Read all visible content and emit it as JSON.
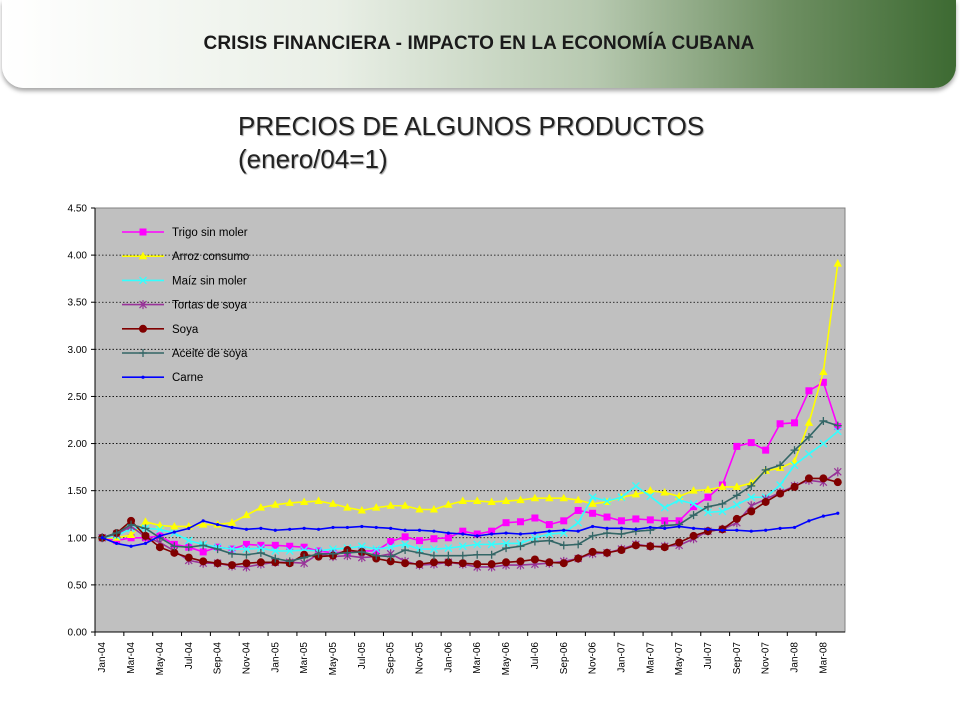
{
  "banner": {
    "title": "CRISIS FINANCIERA  - IMPACTO EN LA ECONOMÍA CUBANA"
  },
  "heading": {
    "line1": "PRECIOS DE ALGUNOS PRODUCTOS",
    "line2": "(enero/04=1)"
  },
  "colors": {
    "plot_background": "#c0c0c0",
    "banner_dark": "#3d6a32"
  },
  "chart_data": {
    "type": "line",
    "title": "",
    "xlabel": "",
    "ylabel": "",
    "ylim": [
      0,
      4.5
    ],
    "yticks": [
      "0.00",
      "0.50",
      "1.00",
      "1.50",
      "2.00",
      "2.50",
      "3.00",
      "3.50",
      "4.00",
      "4.50"
    ],
    "grid": "horizontal dotted",
    "legend_position": "top-left",
    "x_tick_labels": [
      "Jan-04",
      "Mar-04",
      "May-04",
      "Jul-04",
      "Sep-04",
      "Nov-04",
      "Jan-05",
      "Mar-05",
      "May-05",
      "Jul-05",
      "Sep-05",
      "Nov-05",
      "Jan-06",
      "Mar-06",
      "May-06",
      "Jul-06",
      "Sep-06",
      "Nov-06",
      "Jan-07",
      "Mar-07",
      "May-07",
      "Jul-07",
      "Sep-07",
      "Nov-07",
      "Jan-08",
      "Mar-08"
    ],
    "x": [
      "Jan-04",
      "Feb-04",
      "Mar-04",
      "Apr-04",
      "May-04",
      "Jun-04",
      "Jul-04",
      "Aug-04",
      "Sep-04",
      "Oct-04",
      "Nov-04",
      "Dec-04",
      "Jan-05",
      "Feb-05",
      "Mar-05",
      "Apr-05",
      "May-05",
      "Jun-05",
      "Jul-05",
      "Aug-05",
      "Sep-05",
      "Oct-05",
      "Nov-05",
      "Dec-05",
      "Jan-06",
      "Feb-06",
      "Mar-06",
      "Apr-06",
      "May-06",
      "Jun-06",
      "Jul-06",
      "Aug-06",
      "Sep-06",
      "Oct-06",
      "Nov-06",
      "Dec-06",
      "Jan-07",
      "Feb-07",
      "Mar-07",
      "Apr-07",
      "May-07",
      "Jun-07",
      "Jul-07",
      "Aug-07",
      "Sep-07",
      "Oct-07",
      "Nov-07",
      "Dec-07",
      "Jan-08",
      "Feb-08",
      "Mar-08",
      "Apr-08"
    ],
    "series": [
      {
        "name": "Trigo sin moler",
        "color": "#ff00ff",
        "marker": "square",
        "values": [
          1.0,
          0.97,
          1.0,
          1.0,
          1.02,
          0.93,
          0.9,
          0.85,
          0.9,
          0.88,
          0.93,
          0.92,
          0.92,
          0.91,
          0.9,
          0.86,
          0.84,
          0.85,
          0.86,
          0.86,
          0.96,
          1.01,
          0.97,
          0.99,
          1.0,
          1.07,
          1.04,
          1.07,
          1.16,
          1.17,
          1.21,
          1.14,
          1.18,
          1.29,
          1.26,
          1.22,
          1.18,
          1.2,
          1.19,
          1.18,
          1.18,
          1.33,
          1.43,
          1.56,
          1.97,
          2.01,
          1.93,
          2.21,
          2.22,
          2.56,
          2.65,
          2.18
        ]
      },
      {
        "name": "Arroz consumo",
        "color": "#ffff00",
        "marker": "triangle",
        "values": [
          1.0,
          1.0,
          1.03,
          1.17,
          1.13,
          1.12,
          1.12,
          1.14,
          1.14,
          1.16,
          1.24,
          1.32,
          1.35,
          1.37,
          1.38,
          1.39,
          1.36,
          1.32,
          1.29,
          1.32,
          1.34,
          1.34,
          1.3,
          1.3,
          1.35,
          1.39,
          1.39,
          1.38,
          1.39,
          1.4,
          1.42,
          1.42,
          1.42,
          1.4,
          1.36,
          1.38,
          1.43,
          1.46,
          1.5,
          1.48,
          1.44,
          1.5,
          1.51,
          1.54,
          1.54,
          1.58,
          1.71,
          1.74,
          1.81,
          2.22,
          2.76,
          3.91
        ]
      },
      {
        "name": "Maíz sin moler",
        "color": "#33ffff",
        "marker": "x",
        "values": [
          1.0,
          1.02,
          1.1,
          1.1,
          1.09,
          1.05,
          0.97,
          0.93,
          0.9,
          0.88,
          0.88,
          0.89,
          0.86,
          0.86,
          0.87,
          0.86,
          0.88,
          0.89,
          0.91,
          0.88,
          0.9,
          0.93,
          0.88,
          0.88,
          0.89,
          0.91,
          0.93,
          0.93,
          0.94,
          0.94,
          1.0,
          1.04,
          1.05,
          1.16,
          1.43,
          1.39,
          1.43,
          1.55,
          1.44,
          1.32,
          1.4,
          1.36,
          1.27,
          1.28,
          1.35,
          1.43,
          1.43,
          1.56,
          1.77,
          1.89,
          2.0,
          2.13
        ]
      },
      {
        "name": "Tortas de soya",
        "color": "#993399",
        "marker": "star",
        "values": [
          1.0,
          1.04,
          1.12,
          1.01,
          0.95,
          0.86,
          0.76,
          0.73,
          0.73,
          0.7,
          0.69,
          0.72,
          0.74,
          0.74,
          0.73,
          0.83,
          0.8,
          0.81,
          0.79,
          0.8,
          0.83,
          0.75,
          0.71,
          0.72,
          0.74,
          0.72,
          0.69,
          0.69,
          0.71,
          0.71,
          0.72,
          0.73,
          0.75,
          0.78,
          0.83,
          0.84,
          0.88,
          0.93,
          0.91,
          0.91,
          0.92,
          0.99,
          1.07,
          1.09,
          1.16,
          1.34,
          1.41,
          1.48,
          1.55,
          1.61,
          1.59,
          1.7
        ]
      },
      {
        "name": "Soya",
        "color": "#800000",
        "marker": "circle",
        "values": [
          1.0,
          1.05,
          1.18,
          1.02,
          0.9,
          0.84,
          0.79,
          0.75,
          0.73,
          0.71,
          0.73,
          0.74,
          0.74,
          0.73,
          0.82,
          0.8,
          0.81,
          0.87,
          0.85,
          0.78,
          0.75,
          0.73,
          0.72,
          0.74,
          0.74,
          0.73,
          0.72,
          0.72,
          0.74,
          0.75,
          0.77,
          0.74,
          0.73,
          0.78,
          0.85,
          0.84,
          0.87,
          0.92,
          0.91,
          0.9,
          0.95,
          1.02,
          1.07,
          1.09,
          1.2,
          1.28,
          1.38,
          1.47,
          1.54,
          1.63,
          1.63,
          1.59
        ]
      },
      {
        "name": "Aceite de soya",
        "color": "#336666",
        "marker": "plus",
        "values": [
          1.0,
          1.05,
          1.14,
          1.1,
          1.0,
          0.91,
          0.9,
          0.92,
          0.88,
          0.83,
          0.82,
          0.84,
          0.78,
          0.75,
          0.79,
          0.83,
          0.83,
          0.84,
          0.85,
          0.81,
          0.8,
          0.87,
          0.84,
          0.81,
          0.81,
          0.81,
          0.82,
          0.82,
          0.89,
          0.91,
          0.96,
          0.97,
          0.92,
          0.93,
          1.02,
          1.05,
          1.04,
          1.07,
          1.08,
          1.13,
          1.14,
          1.24,
          1.33,
          1.36,
          1.45,
          1.55,
          1.72,
          1.77,
          1.93,
          2.07,
          2.24,
          2.19
        ]
      },
      {
        "name": "Carne",
        "color": "#0000ff",
        "marker": "dot",
        "values": [
          1.0,
          0.94,
          0.91,
          0.94,
          1.02,
          1.06,
          1.1,
          1.18,
          1.14,
          1.11,
          1.09,
          1.1,
          1.08,
          1.09,
          1.1,
          1.09,
          1.11,
          1.11,
          1.12,
          1.11,
          1.1,
          1.08,
          1.08,
          1.07,
          1.05,
          1.04,
          1.02,
          1.04,
          1.05,
          1.04,
          1.05,
          1.07,
          1.08,
          1.07,
          1.12,
          1.1,
          1.1,
          1.09,
          1.11,
          1.1,
          1.12,
          1.1,
          1.09,
          1.08,
          1.08,
          1.07,
          1.08,
          1.1,
          1.11,
          1.18,
          1.23,
          1.26
        ]
      }
    ]
  }
}
